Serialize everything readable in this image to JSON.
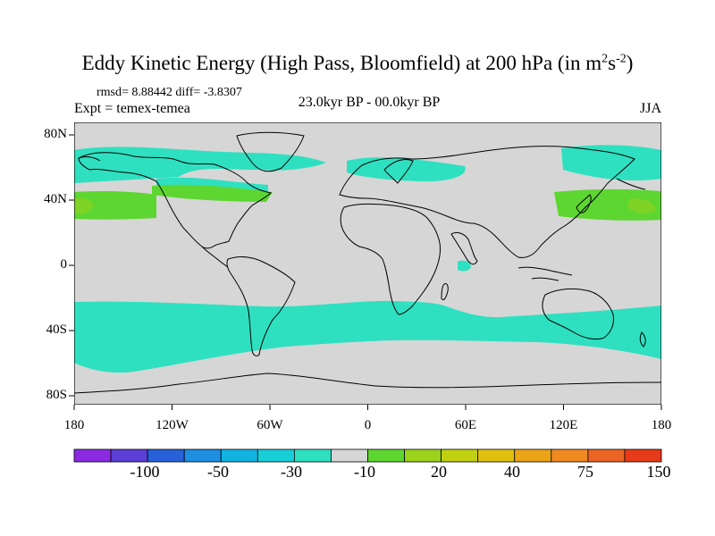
{
  "title": {
    "main": "Eddy Kinetic Energy (High Pass, Bloomfield) at 200 hPa (in m",
    "sup1": "2",
    "mid": "s",
    "sup2": "-2",
    "end": ")"
  },
  "stats": "rmsd= 8.88442 diff= -3.8307",
  "experiment": "Expt = temex-temea",
  "period": "23.0kyr BP - 00.0kyr BP",
  "season": "JJA",
  "lat_ticks": [
    "80N",
    "40N",
    "0",
    "40S",
    "80S"
  ],
  "lon_ticks": [
    "180",
    "120W",
    "60W",
    "0",
    "60E",
    "120E",
    "180"
  ],
  "colorbar": {
    "labels": [
      "-100",
      "-50",
      "-30",
      "-10",
      "20",
      "40",
      "75",
      "150"
    ],
    "colors": [
      "#8a2be2",
      "#5b3fd6",
      "#2860d8",
      "#1e8ee0",
      "#12b3e0",
      "#18cfd8",
      "#2ee0c0",
      "#d6d6d6",
      "#5ed631",
      "#9ad21c",
      "#c2d012",
      "#e0c00f",
      "#eba418",
      "#ee8a20",
      "#ec6424",
      "#e63b1a"
    ]
  },
  "map_colors": {
    "land_ocean": "#d6d6d6",
    "cyan": "#2ee0c0",
    "green": "#5ed631",
    "coast": "#000000"
  }
}
